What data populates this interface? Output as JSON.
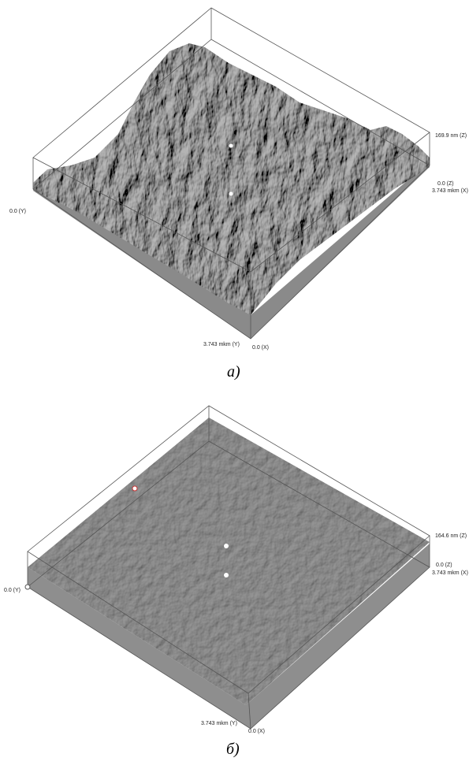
{
  "panels": [
    {
      "caption": "а)",
      "labels": {
        "z_max": "169.9 nm (Z)",
        "z_min": "0.0 (Z)",
        "x_max": "3.743 mkm (X)",
        "y_min": "0.0 (Y)",
        "y_max": "3.743 mkm (Y)",
        "x_min": "0.0 (X)"
      }
    },
    {
      "caption": "б)",
      "labels": {
        "z_max": "164.6 nm (Z)",
        "z_min": "0.0 (Z)",
        "x_max": "3.743 mkm (X)",
        "y_min": "0.0 (Y)",
        "y_max": "3.743 mkm (Y)",
        "x_min": "0.0 (X)"
      }
    }
  ]
}
